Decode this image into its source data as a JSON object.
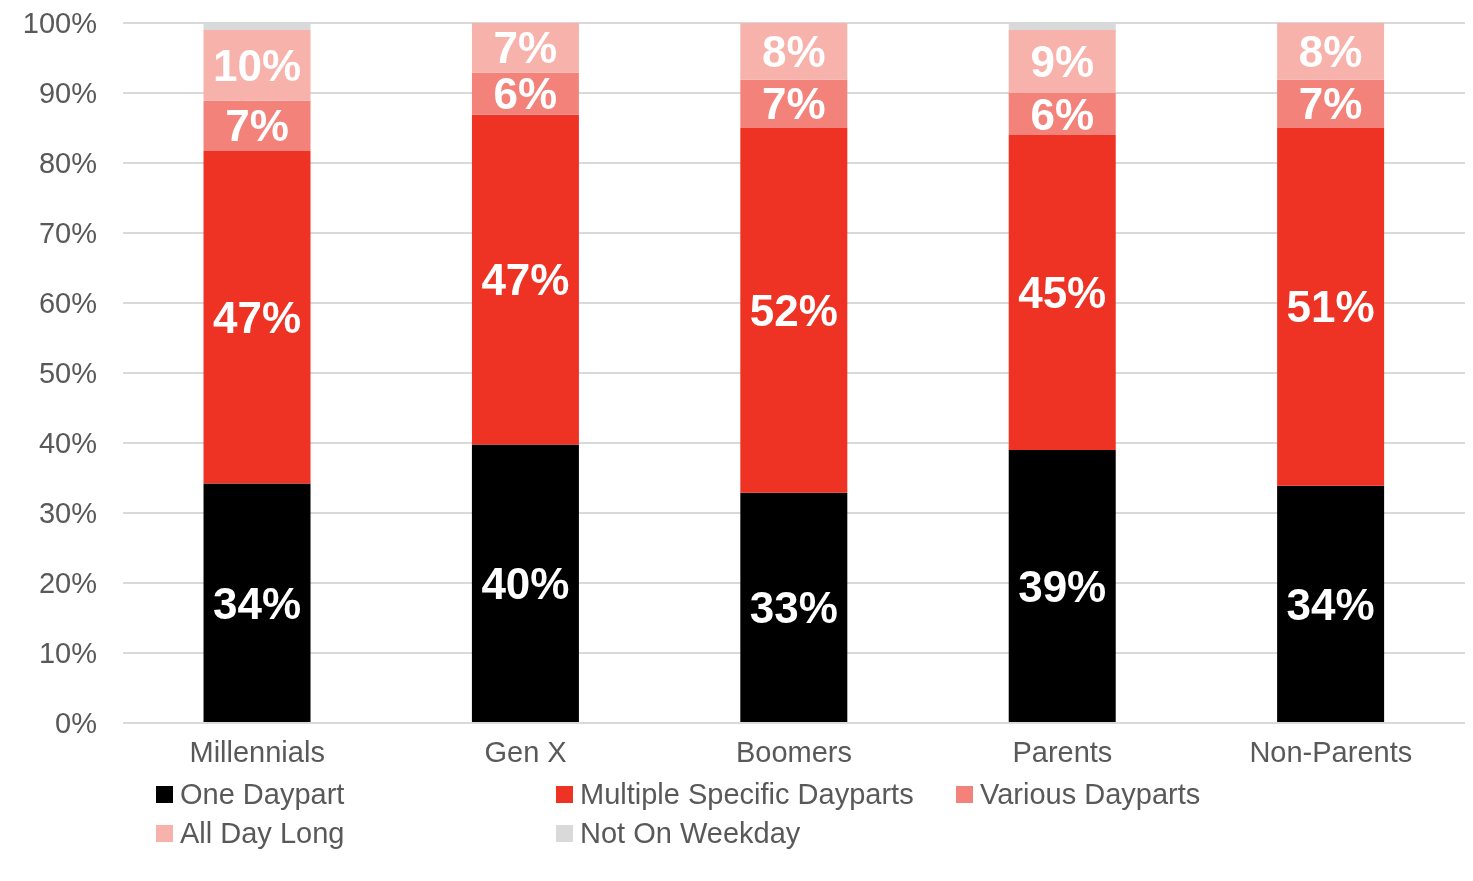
{
  "chart_data": {
    "type": "bar",
    "stacked": true,
    "categories": [
      "Millennials",
      "Gen X",
      "Boomers",
      "Parents",
      "Non-Parents"
    ],
    "series": [
      {
        "name": "One Daypart",
        "color": "#000000",
        "values": [
          34.2,
          39.8,
          32.9,
          39.0,
          33.9
        ],
        "value_labels": [
          "34%",
          "40%",
          "33%",
          "39%",
          "34%"
        ]
      },
      {
        "name": "Multiple Specific Dayparts",
        "color": "#ee3224",
        "values": [
          47.5,
          47.1,
          52.1,
          45.0,
          51.1
        ],
        "value_labels": [
          "47%",
          "47%",
          "52%",
          "45%",
          "51%"
        ]
      },
      {
        "name": "Various Dayparts",
        "color": "#f3837a",
        "values": [
          7.2,
          6.0,
          6.9,
          6.0,
          6.9
        ],
        "value_labels": [
          "7%",
          "6%",
          "7%",
          "6%",
          "7%"
        ]
      },
      {
        "name": "All Day Long",
        "color": "#f8b2ac",
        "values": [
          10.1,
          7.1,
          8.1,
          9.0,
          8.1
        ],
        "value_labels": [
          "10%",
          "7%",
          "8%",
          "9%",
          "8%"
        ]
      },
      {
        "name": "Not On Weekday",
        "color": "#d9d9d9",
        "values": [
          1.0,
          0,
          0,
          1.0,
          0
        ],
        "value_labels": [
          null,
          null,
          null,
          null,
          null
        ]
      }
    ],
    "ylim": [
      0,
      100
    ],
    "yticks": [
      {
        "value": 0,
        "label": "0%"
      },
      {
        "value": 10,
        "label": "10%"
      },
      {
        "value": 20,
        "label": "20%"
      },
      {
        "value": 30,
        "label": "30%"
      },
      {
        "value": 40,
        "label": "40%"
      },
      {
        "value": 50,
        "label": "50%"
      },
      {
        "value": 60,
        "label": "60%"
      },
      {
        "value": 70,
        "label": "70%"
      },
      {
        "value": 80,
        "label": "80%"
      },
      {
        "value": 90,
        "label": "90%"
      },
      {
        "value": 100,
        "label": "100%"
      }
    ],
    "grid": "y",
    "legend": "bottom"
  }
}
